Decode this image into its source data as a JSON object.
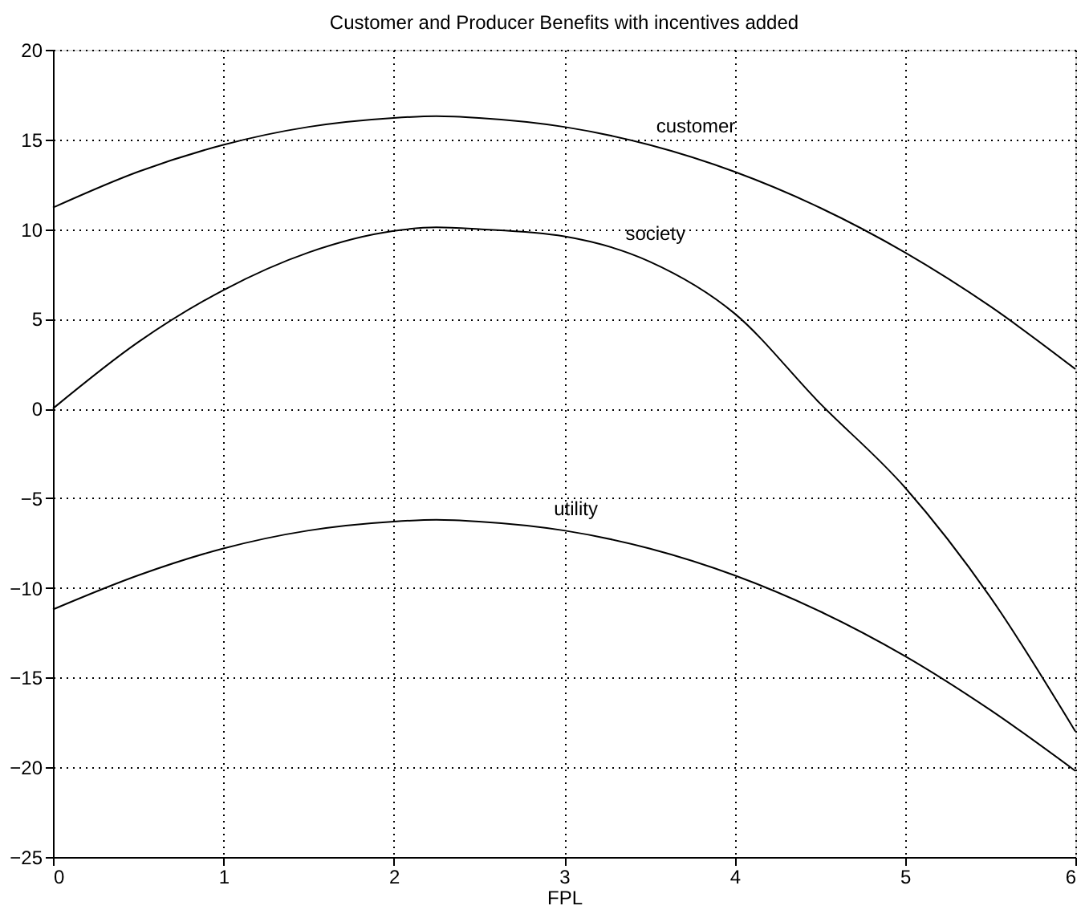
{
  "chart_data": {
    "type": "line",
    "title": "Customer and Producer Benefits with incentives added",
    "xlabel": "FPL",
    "x": [
      0,
      0.5,
      1,
      1.5,
      2,
      2.25,
      2.5,
      3,
      3.5,
      4,
      4.5,
      5,
      5.5,
      6
    ],
    "series": [
      {
        "name": "customer",
        "color": "#000000",
        "values": [
          11.2,
          13.2,
          14.7,
          15.7,
          16.2,
          16.3,
          16.2,
          15.7,
          14.7,
          13.2,
          11.2,
          8.7,
          5.7,
          2.2
        ]
      },
      {
        "name": "society",
        "color": "#000000",
        "values": [
          0,
          3.7,
          6.6,
          8.7,
          9.9,
          10.1,
          10.0,
          9.6,
          8.2,
          5.3,
          0.3,
          -4.4,
          -10.5,
          -18
        ]
      },
      {
        "name": "utility",
        "color": "#000000",
        "values": [
          -11.2,
          -9.3,
          -7.8,
          -6.8,
          -6.3,
          -6.2,
          -6.3,
          -6.8,
          -7.8,
          -9.3,
          -11.3,
          -13.8,
          -16.8,
          -20.2
        ]
      }
    ],
    "xlim": [
      0,
      6
    ],
    "xticks": [
      0,
      1,
      2,
      3,
      4,
      5,
      6
    ],
    "ylim": [
      -25,
      20
    ],
    "yticks": [
      -25,
      -20,
      -15,
      -10,
      -5,
      0,
      5,
      10,
      15,
      20
    ],
    "grid": true,
    "legend": false,
    "marker": "none",
    "line_style": "solid"
  }
}
